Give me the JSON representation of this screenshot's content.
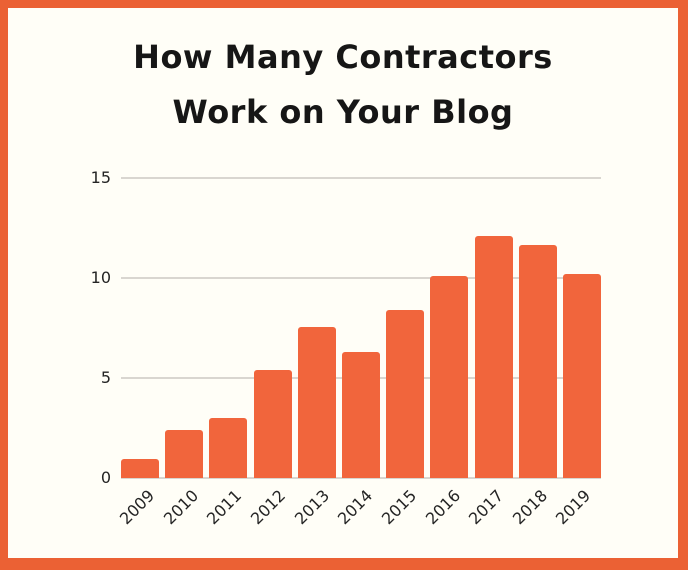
{
  "page": {
    "background": "#FFFEF7",
    "border_color": "#EB6134"
  },
  "title": {
    "line1": "How Many Contractors",
    "line2": "Work on Your Blog"
  },
  "chart_data": {
    "type": "bar",
    "title": "How Many Contractors Work on Your Blog",
    "categories": [
      "2009",
      "2010",
      "2011",
      "2012",
      "2013",
      "2014",
      "2015",
      "2016",
      "2017",
      "2018",
      "2019"
    ],
    "values": [
      0.95,
      2.4,
      3,
      5.4,
      7.55,
      6.3,
      8.4,
      10.1,
      12.1,
      11.65,
      10.2
    ],
    "xlabel": "",
    "ylabel": "",
    "ylim": [
      0,
      15
    ],
    "yticks": [
      0,
      5,
      10,
      15
    ],
    "grid": "horizontal",
    "legend": "none",
    "bar_color": "#F1653C",
    "gridline_color": "#D9D6D0",
    "text_color": "#242424",
    "x_tick_rotation_deg": -45
  }
}
